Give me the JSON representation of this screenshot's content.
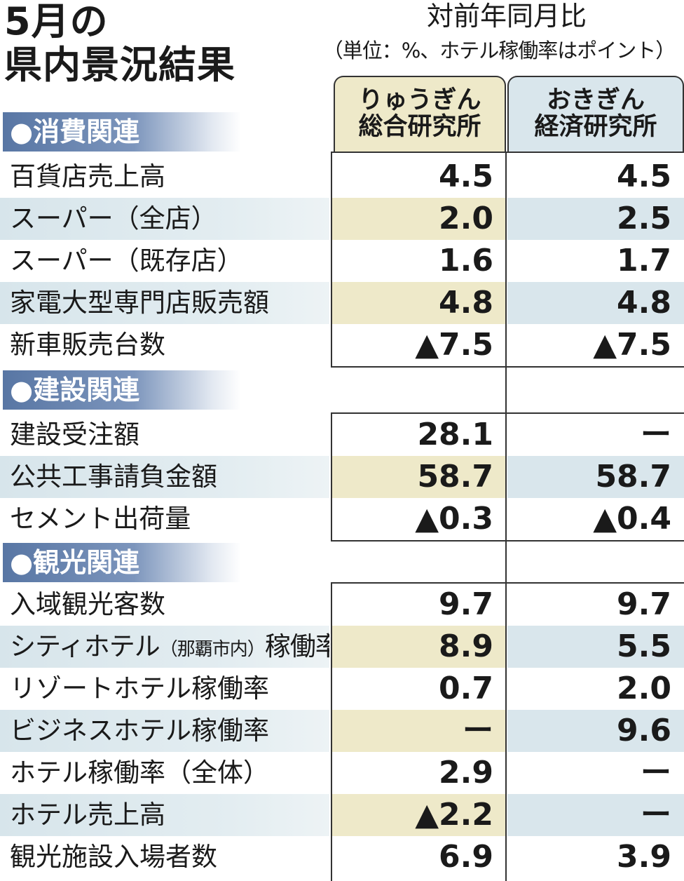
{
  "title": {
    "line1": "5月の",
    "line2": "県内景況結果"
  },
  "header": {
    "main": "対前年同月比",
    "unit": "（単位：%、ホテル稼働率はポイント）"
  },
  "columns": {
    "a": {
      "line1": "りゅうぎん",
      "line2": "総合研究所"
    },
    "b": {
      "line1": "おきぎん",
      "line2": "経済研究所"
    }
  },
  "sections": [
    {
      "name": "●消費関連",
      "rows": [
        {
          "label": "百貨店売上高",
          "a": "4.5",
          "b": "4.5"
        },
        {
          "label": "スーパー（全店）",
          "a": "2.0",
          "b": "2.5"
        },
        {
          "label": "スーパー（既存店）",
          "a": "1.6",
          "b": "1.7"
        },
        {
          "label": "家電大型専門店販売額",
          "a": "4.8",
          "b": "4.8"
        },
        {
          "label": "新車販売台数",
          "a": "▲7.5",
          "b": "▲7.5"
        }
      ]
    },
    {
      "name": "●建設関連",
      "rows": [
        {
          "label": "建設受注額",
          "a": "28.1",
          "b": "ー"
        },
        {
          "label": "公共工事請負金額",
          "a": "58.7",
          "b": "58.7"
        },
        {
          "label": "セメント出荷量",
          "a": "▲0.3",
          "b": "▲0.4"
        }
      ]
    },
    {
      "name": "●観光関連",
      "rows": [
        {
          "label": "入域観光客数",
          "a": "9.7",
          "b": "9.7"
        },
        {
          "label_pre": "シティホテル",
          "label_paren": "（那覇市内）",
          "label_post": "稼働率",
          "a": "8.9",
          "b": "5.5"
        },
        {
          "label": "リゾートホテル稼働率",
          "a": "0.7",
          "b": "2.0"
        },
        {
          "label": "ビジネスホテル稼働率",
          "a": "ー",
          "b": "9.6"
        },
        {
          "label": "ホテル稼働率（全体）",
          "a": "2.9",
          "b": "ー"
        },
        {
          "label": "ホテル売上高",
          "a": "▲2.2",
          "b": "ー"
        },
        {
          "label": "観光施設入場者数",
          "a": "6.9",
          "b": "3.9"
        }
      ]
    }
  ]
}
